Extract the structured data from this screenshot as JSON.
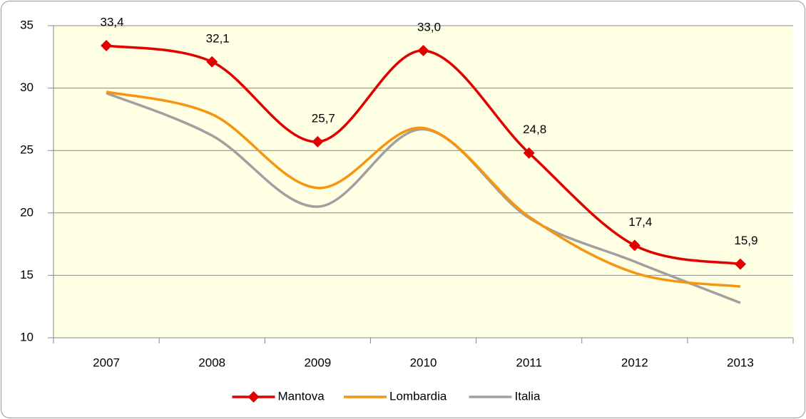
{
  "chart_data": {
    "type": "line",
    "categories": [
      "2007",
      "2008",
      "2009",
      "2010",
      "2011",
      "2012",
      "2013"
    ],
    "series": [
      {
        "name": "Mantova",
        "color": "#e00000",
        "marker": "diamond",
        "values": [
          33.4,
          32.1,
          25.7,
          33.0,
          24.8,
          17.4,
          15.9
        ],
        "value_labels": [
          "33,4",
          "32,1",
          "25,7",
          "33,0",
          "24,8",
          "17,4",
          "15,9"
        ]
      },
      {
        "name": "Lombardia",
        "color": "#f79410",
        "values": [
          29.7,
          27.9,
          22.0,
          26.8,
          19.7,
          15.2,
          14.1
        ]
      },
      {
        "name": "Italia",
        "color": "#a0a0a0",
        "values": [
          29.6,
          26.2,
          20.5,
          26.7,
          19.6,
          16.1,
          12.8
        ]
      }
    ],
    "ylim": [
      10,
      35
    ],
    "yticks": [
      10,
      15,
      20,
      25,
      30,
      35
    ],
    "grid": true,
    "legend": "bottom",
    "plot_background": "#ffffe3"
  }
}
